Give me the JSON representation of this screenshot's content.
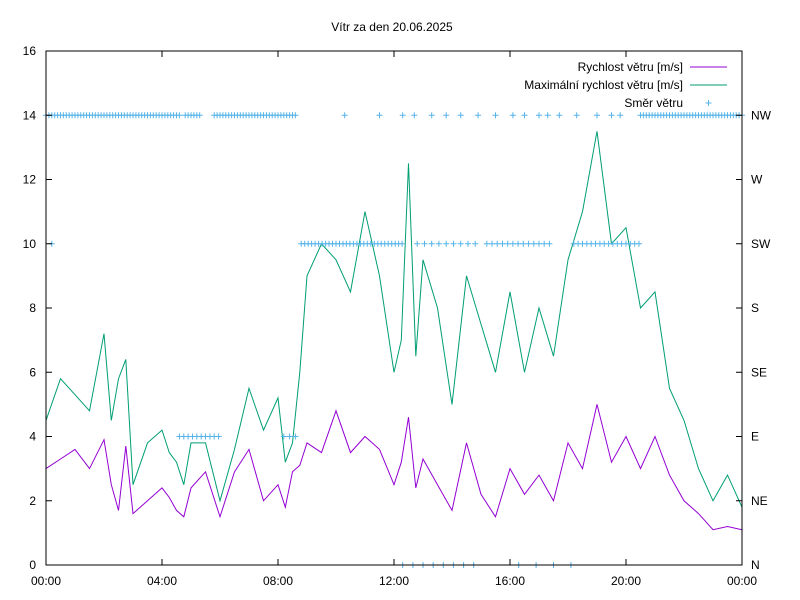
{
  "chart_data": {
    "type": "line",
    "title": "Vítr za den 20.06.2025",
    "x_tick_labels": [
      "00:00",
      "04:00",
      "08:00",
      "12:00",
      "16:00",
      "20:00",
      "00:00"
    ],
    "xlim_hours": [
      0,
      24
    ],
    "y_left_ticks": [
      0,
      2,
      4,
      6,
      8,
      10,
      12,
      14,
      16
    ],
    "ylim": [
      0,
      16
    ],
    "y_right_ticks": [
      {
        "value": 0,
        "label": "N"
      },
      {
        "value": 2,
        "label": "NE"
      },
      {
        "value": 4,
        "label": "E"
      },
      {
        "value": 6,
        "label": "SE"
      },
      {
        "value": 8,
        "label": "S"
      },
      {
        "value": 10,
        "label": "SW"
      },
      {
        "value": 12,
        "label": "W"
      },
      {
        "value": 14,
        "label": "NW"
      }
    ],
    "grid": false,
    "legend_position": "top-right",
    "series": [
      {
        "name": "Rychlost větru [m/s]",
        "color": "#9400d3",
        "style": "line",
        "x_hours": [
          0,
          0.5,
          1,
          1.5,
          2,
          2.25,
          2.5,
          2.75,
          3,
          3.5,
          4,
          4.25,
          4.5,
          4.75,
          5,
          5.5,
          6,
          6.5,
          7,
          7.5,
          8,
          8.25,
          8.5,
          8.75,
          9,
          9.5,
          10,
          10.5,
          11,
          11.5,
          12,
          12.25,
          12.5,
          12.75,
          13,
          13.5,
          14,
          14.5,
          15,
          15.5,
          16,
          16.5,
          17,
          17.5,
          18,
          18.5,
          19,
          19.5,
          20,
          20.5,
          21,
          21.5,
          22,
          22.5,
          23,
          23.5,
          24
        ],
        "values": [
          3.0,
          3.3,
          3.6,
          3.0,
          3.9,
          2.5,
          1.7,
          3.7,
          1.6,
          2.0,
          2.4,
          2.1,
          1.7,
          1.5,
          2.4,
          2.9,
          1.5,
          2.9,
          3.6,
          2.0,
          2.5,
          1.8,
          2.9,
          3.1,
          3.8,
          3.5,
          4.8,
          3.5,
          4.0,
          3.6,
          2.5,
          3.2,
          4.6,
          2.4,
          3.3,
          2.5,
          1.7,
          3.8,
          2.2,
          1.5,
          3.0,
          2.2,
          2.8,
          2.0,
          3.8,
          3.0,
          5.0,
          3.2,
          4.0,
          3.0,
          4.0,
          2.8,
          2.0,
          1.6,
          1.1,
          1.2,
          1.1
        ]
      },
      {
        "name": "Maximální rychlost větru [m/s]",
        "color": "#009e73",
        "style": "line",
        "x_hours": [
          0,
          0.5,
          1,
          1.5,
          2,
          2.25,
          2.5,
          2.75,
          3,
          3.5,
          4,
          4.25,
          4.5,
          4.75,
          5,
          5.5,
          6,
          6.5,
          7,
          7.5,
          8,
          8.25,
          8.5,
          8.75,
          9,
          9.5,
          10,
          10.5,
          11,
          11.5,
          12,
          12.25,
          12.5,
          12.75,
          13,
          13.5,
          14,
          14.5,
          15,
          15.5,
          16,
          16.5,
          17,
          17.5,
          18,
          18.5,
          19,
          19.5,
          20,
          20.5,
          21,
          21.5,
          22,
          22.5,
          23,
          23.5,
          24
        ],
        "values": [
          4.5,
          5.8,
          5.3,
          4.8,
          7.2,
          4.5,
          5.8,
          6.4,
          2.5,
          3.8,
          4.2,
          3.5,
          3.2,
          2.5,
          3.8,
          3.8,
          2.0,
          3.6,
          5.5,
          4.2,
          5.2,
          3.2,
          3.8,
          6.0,
          9.0,
          10.0,
          9.5,
          8.5,
          11.0,
          9.0,
          6.0,
          7.0,
          12.5,
          6.5,
          9.5,
          8.0,
          5.0,
          9.0,
          7.5,
          6.0,
          8.5,
          6.0,
          8.0,
          6.5,
          9.5,
          11.0,
          13.5,
          10.0,
          10.5,
          8.0,
          8.5,
          5.5,
          4.5,
          3.0,
          2.0,
          2.8,
          1.8
        ]
      },
      {
        "name": "Směr větru",
        "color": "#56b4e9",
        "style": "points",
        "points": [
          {
            "from": 0.0,
            "to": 4.6,
            "step": 0.1,
            "value": 14
          },
          {
            "from": 4.8,
            "to": 5.3,
            "step": 0.1,
            "value": 14
          },
          {
            "from": 5.8,
            "to": 8.6,
            "step": 0.1,
            "value": 14
          },
          {
            "from": 8.8,
            "to": 12.3,
            "step": 0.12,
            "value": 10
          },
          {
            "from": 12.8,
            "to": 15.0,
            "step": 0.25,
            "value": 10
          },
          {
            "from": 15.2,
            "to": 17.5,
            "step": 0.18,
            "value": 10
          },
          {
            "from": 18.2,
            "to": 20.5,
            "step": 0.15,
            "value": 10
          },
          {
            "from": 20.5,
            "to": 24.0,
            "step": 0.1,
            "value": 14
          },
          {
            "from": 4.6,
            "to": 6.0,
            "step": 0.15,
            "value": 4
          },
          {
            "from": 8.2,
            "to": 8.6,
            "step": 0.2,
            "value": 4
          },
          {
            "from": 12.3,
            "to": 15.0,
            "step": 0.35,
            "value": 0
          },
          {
            "from": 16.3,
            "to": 18.2,
            "step": 0.6,
            "value": 0
          }
        ],
        "extra_points": [
          {
            "x": 0.2,
            "y": 10
          },
          {
            "x": 10.3,
            "y": 14
          },
          {
            "x": 11.5,
            "y": 14
          },
          {
            "x": 12.3,
            "y": 14
          },
          {
            "x": 12.7,
            "y": 14
          },
          {
            "x": 13.3,
            "y": 14
          },
          {
            "x": 13.8,
            "y": 14
          },
          {
            "x": 14.3,
            "y": 14
          },
          {
            "x": 14.9,
            "y": 14
          },
          {
            "x": 15.5,
            "y": 14
          },
          {
            "x": 16.1,
            "y": 14
          },
          {
            "x": 16.5,
            "y": 14
          },
          {
            "x": 17.0,
            "y": 14
          },
          {
            "x": 17.3,
            "y": 14
          },
          {
            "x": 17.7,
            "y": 14
          },
          {
            "x": 18.3,
            "y": 14
          },
          {
            "x": 19.0,
            "y": 14
          },
          {
            "x": 19.5,
            "y": 14
          },
          {
            "x": 19.8,
            "y": 14
          }
        ]
      }
    ]
  }
}
